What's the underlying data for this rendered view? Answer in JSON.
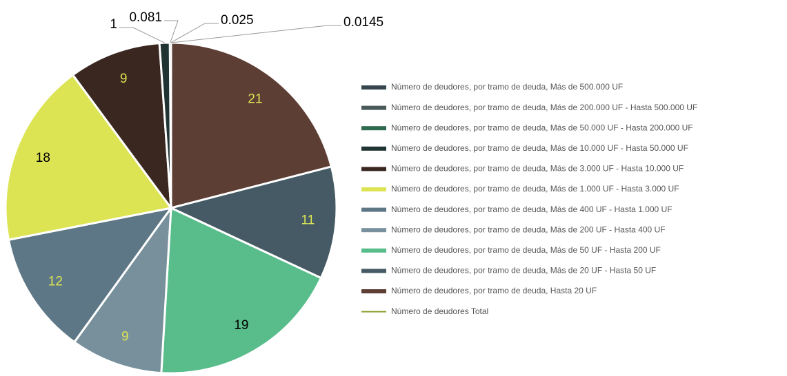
{
  "chart_data": {
    "type": "pie",
    "categories": [
      "Número de deudores, por tramo de deuda, Hasta 20 UF",
      "Número de deudores, por tramo de deuda, Más de 20 UF - Hasta 50 UF",
      "Número de deudores, por tramo de deuda, Más de 50 UF - Hasta 200 UF",
      "Número de deudores, por tramo de deuda, Más de 200 UF - Hasta 400 UF",
      "Número de deudores, por tramo de deuda, Más de 400 UF - Hasta 1.000 UF",
      "Número de deudores, por tramo de deuda, Más de 1.000 UF - Hasta 3.000 UF",
      "Número de deudores, por tramo de deuda, Más de 3.000 UF - Hasta 10.000 UF",
      "Número de deudores, por tramo de deuda, Más de 10.000 UF - Hasta 50.000 UF",
      "Número de deudores, por tramo de deuda, Más de 50.000 UF - Hasta 200.000 UF",
      "Número de deudores, por tramo de deuda, Más de 200.000 UF - Hasta 500.000 UF",
      "Número de deudores, por tramo de deuda, Más de 500.000 UF",
      "Número de deudores Total"
    ],
    "values": [
      21,
      11,
      19,
      9,
      12,
      18,
      9,
      1,
      0.081,
      0.025,
      0.0145,
      null
    ],
    "colors": [
      "#5d3e34",
      "#455a64",
      "#58bd8a",
      "#78909c",
      "#5e7786",
      "#dce454",
      "#3a2820",
      "#1f3433",
      "#2e6b4f",
      "#4a5a5a",
      "#37474f",
      "#8f9c2a"
    ],
    "label_colors": [
      "#dce454",
      "#dce454",
      "#000000",
      "#dce454",
      "#dce454",
      "#000000",
      "#dce454",
      "#000000",
      "#000000",
      "#000000",
      "#000000",
      "#000000"
    ]
  }
}
